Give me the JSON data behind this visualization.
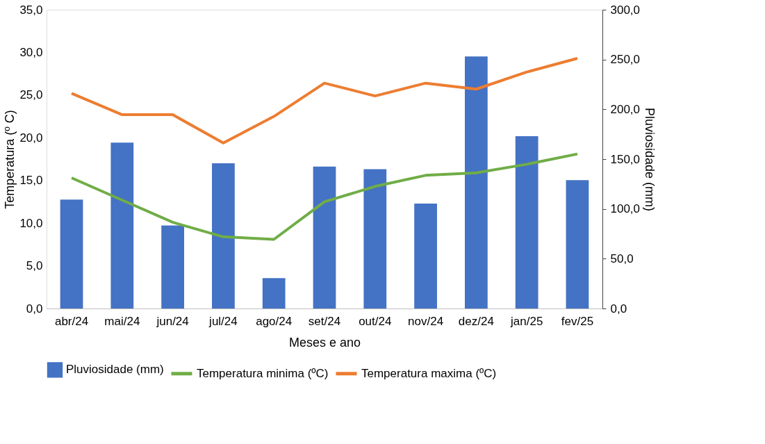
{
  "chart_data": {
    "type": "bar",
    "xlabel": "Meses e ano",
    "ylabel": "Temperatura (º C)",
    "y2label": "Pluviosidade (mm)",
    "categories": [
      "abr/24",
      "mai/24",
      "jun/24",
      "jul/24",
      "ago/24",
      "set/24",
      "out/24",
      "nov/24",
      "dez/24",
      "jan/25",
      "fev/25"
    ],
    "series": [
      {
        "name": "Pluviosidade (mm)",
        "axis": "y2",
        "color": "#4472c4",
        "values": [
          109.3,
          166.6,
          83.3,
          145.8,
          30.6,
          142.5,
          139.9,
          105.4,
          253.1,
          173.1,
          128.9
        ]
      },
      {
        "name": "Temperatura minima (ºC)",
        "type": "line",
        "color": "#70ad47",
        "values": [
          15.3,
          12.7,
          10.1,
          8.4,
          8.1,
          12.5,
          14.3,
          15.6,
          15.9,
          16.9,
          18.1
        ]
      },
      {
        "name": "Temperatura maxima (ºC)",
        "type": "line",
        "color": "#ed7d31",
        "values": [
          25.2,
          22.7,
          22.7,
          19.4,
          22.5,
          26.4,
          24.9,
          26.4,
          25.7,
          27.7,
          29.3
        ]
      }
    ],
    "ylim": [
      0,
      35
    ],
    "yticks": [
      {
        "value": 0,
        "label": "0,0"
      },
      {
        "value": 5,
        "label": "5,0"
      },
      {
        "value": 10,
        "label": "10,0"
      },
      {
        "value": 15,
        "label": "15,0"
      },
      {
        "value": 20,
        "label": "20,0"
      },
      {
        "value": 25,
        "label": "25,0"
      },
      {
        "value": 30,
        "label": "30,0"
      },
      {
        "value": 35,
        "label": "35,0"
      }
    ],
    "y2lim": [
      0,
      300
    ],
    "y2ticks": [
      {
        "value": 0,
        "label": "0,0"
      },
      {
        "value": 50,
        "label": "50,0"
      },
      {
        "value": 100,
        "label": "100,0"
      },
      {
        "value": 150,
        "label": "150,0"
      },
      {
        "value": 200,
        "label": "200,0"
      },
      {
        "value": 250,
        "label": "250,0"
      },
      {
        "value": 300,
        "label": "300,0"
      }
    ],
    "grid": false,
    "legend": "bottom",
    "marker": "none",
    "line_style": "solid"
  }
}
